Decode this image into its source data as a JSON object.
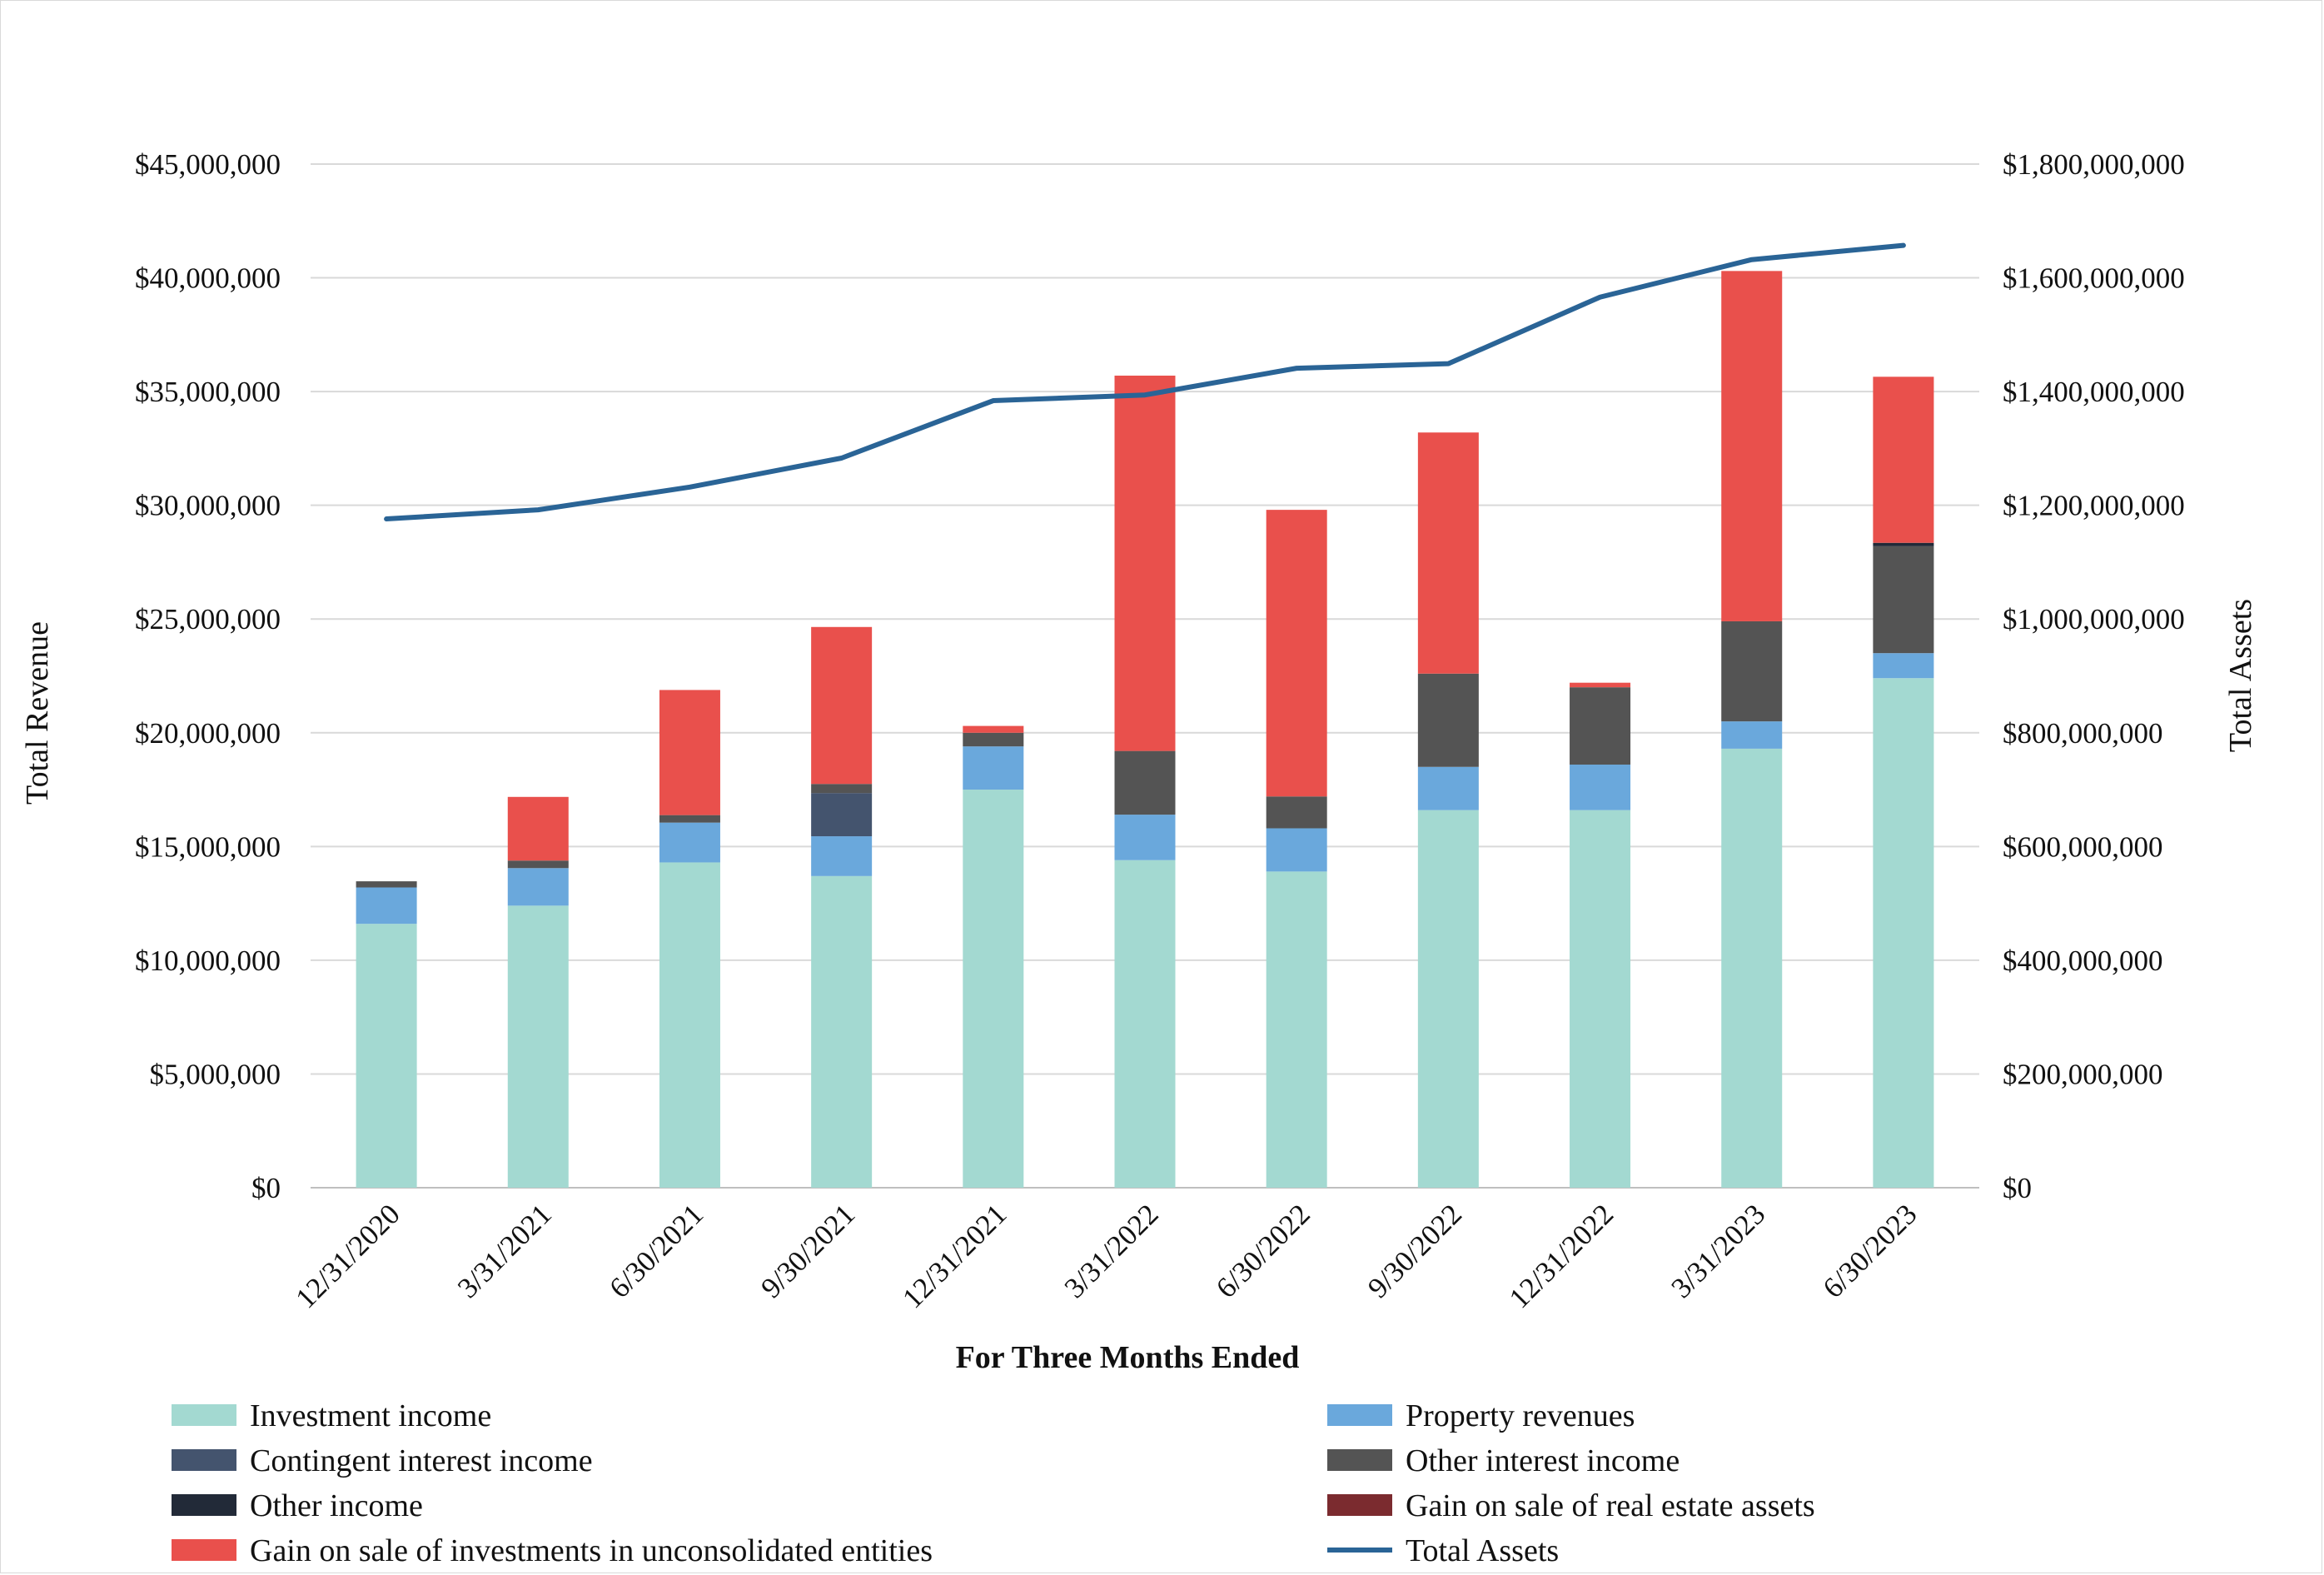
{
  "chart_data": {
    "type": "bar",
    "stacked": true,
    "categories": [
      "12/31/2020",
      "3/31/2021",
      "6/30/2021",
      "9/30/2021",
      "12/31/2021",
      "3/31/2022",
      "6/30/2022",
      "9/30/2022",
      "12/31/2022",
      "3/31/2023",
      "6/30/2023"
    ],
    "xlabel": "For Three Months Ended",
    "ylabel": "Total Revenue",
    "y2label": "Total Assets",
    "ylim": [
      0,
      45000000
    ],
    "y2lim": [
      0,
      1800000000
    ],
    "yticks": [
      "$0",
      "$5,000,000",
      "$10,000,000",
      "$15,000,000",
      "$20,000,000",
      "$25,000,000",
      "$30,000,000",
      "$35,000,000",
      "$40,000,000",
      "$45,000,000"
    ],
    "y2ticks": [
      "$0",
      "$200,000,000",
      "$400,000,000",
      "$600,000,000",
      "$800,000,000",
      "$1,000,000,000",
      "$1,200,000,000",
      "$1,400,000,000",
      "$1,600,000,000",
      "$1,800,000,000"
    ],
    "grid": true,
    "legend_position": "bottom",
    "series": [
      {
        "name": "Investment income",
        "color": "#a3d9d1",
        "values": [
          11600000,
          12400000,
          14300000,
          13700000,
          17500000,
          14400000,
          13900000,
          16600000,
          16600000,
          19300000,
          22400000
        ]
      },
      {
        "name": "Property revenues",
        "color": "#6aa8dc",
        "values": [
          1600000,
          1650000,
          1750000,
          1750000,
          1900000,
          2000000,
          1900000,
          1900000,
          2000000,
          1200000,
          1100000
        ]
      },
      {
        "name": "Contingent interest income",
        "color": "#44546e",
        "values": [
          0,
          0,
          0,
          1900000,
          0,
          0,
          0,
          0,
          0,
          0,
          0
        ]
      },
      {
        "name": "Other interest income",
        "color": "#545454",
        "values": [
          270000,
          330000,
          330000,
          400000,
          600000,
          2800000,
          1400000,
          4100000,
          3400000,
          4400000,
          4700000
        ]
      },
      {
        "name": "Other income",
        "color": "#222a38",
        "values": [
          0,
          0,
          0,
          0,
          0,
          0,
          0,
          0,
          0,
          0,
          150000
        ]
      },
      {
        "name": "Gain on sale of real estate assets",
        "color": "#7b2b2f",
        "values": [
          0,
          0,
          0,
          0,
          0,
          0,
          0,
          0,
          0,
          0,
          0
        ]
      },
      {
        "name": "Gain on sale of investments in unconsolidated entities",
        "color": "#e9504c",
        "values": [
          0,
          2800000,
          5500000,
          6900000,
          300000,
          16500000,
          12600000,
          10600000,
          200000,
          15400000,
          7300000
        ]
      }
    ],
    "line_series": {
      "name": "Total Assets",
      "color": "#2a6496",
      "axis": "secondary",
      "values": [
        1176000000,
        1192000000,
        1232000000,
        1283000000,
        1384000000,
        1394000000,
        1441000000,
        1449000000,
        1566000000,
        1632000000,
        1657000000
      ]
    }
  }
}
